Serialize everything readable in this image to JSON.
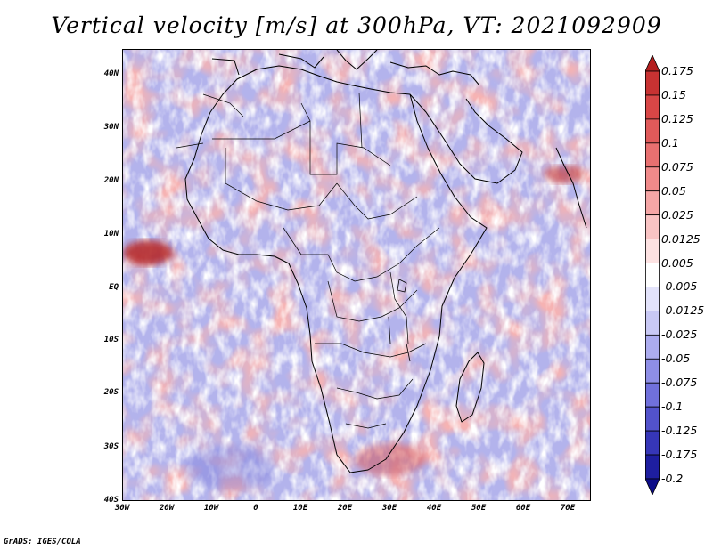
{
  "title": "Vertical velocity [m/s] at 300hPa, VT: 2021092909",
  "footer": "GrADS: IGES/COLA",
  "lat_labels": [
    "40N",
    "30N",
    "20N",
    "10N",
    "EQ",
    "10S",
    "20S",
    "30S",
    "40S"
  ],
  "lon_labels": [
    "30W",
    "20W",
    "10W",
    "0",
    "10E",
    "20E",
    "30E",
    "40E",
    "50E",
    "60E",
    "70E"
  ],
  "colorbar": {
    "labels": [
      "0.175",
      "0.15",
      "0.125",
      "0.1",
      "0.075",
      "0.05",
      "0.025",
      "0.0125",
      "0.005",
      "-0.005",
      "-0.0125",
      "-0.025",
      "-0.05",
      "-0.075",
      "-0.1",
      "-0.125",
      "-0.175",
      "-0.2"
    ],
    "colors": [
      "#b41e1e",
      "#c83232",
      "#d84646",
      "#e05a5a",
      "#e87070",
      "#f08a8a",
      "#f5a6a6",
      "#f9c4c4",
      "#fde2e2",
      "#ffffff",
      "#e3e3fb",
      "#c9c9f5",
      "#acacef",
      "#8e8ee6",
      "#7070dc",
      "#5252cc",
      "#3636b8",
      "#1e1ea0",
      "#0c0c88"
    ]
  }
}
